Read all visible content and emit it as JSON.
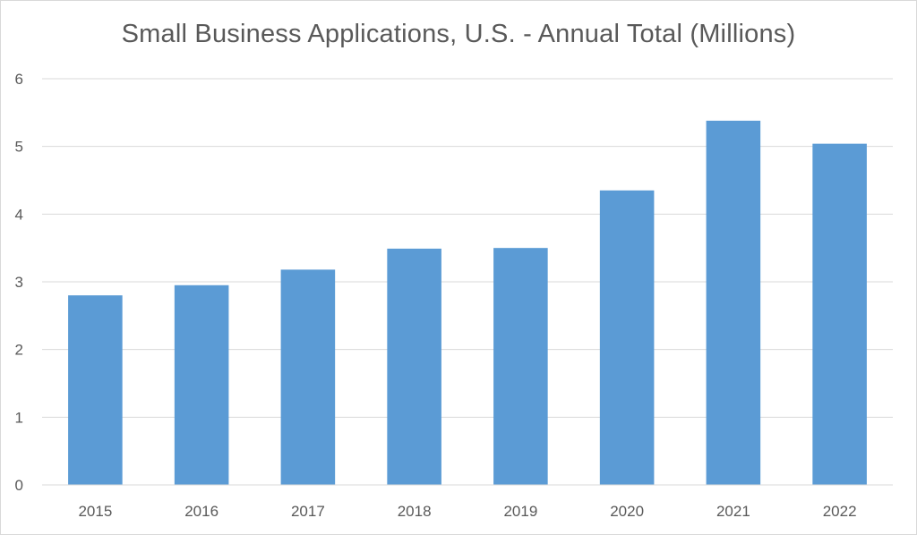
{
  "chart_data": {
    "type": "bar",
    "title": "Small Business Applications, U.S. - Annual Total (Millions)",
    "xlabel": "",
    "ylabel": "",
    "categories": [
      "2015",
      "2016",
      "2017",
      "2018",
      "2019",
      "2020",
      "2021",
      "2022"
    ],
    "values": [
      2.8,
      2.95,
      3.18,
      3.49,
      3.5,
      4.35,
      5.38,
      5.04
    ],
    "ylim": [
      0,
      6
    ],
    "yticks": [
      "0",
      "1",
      "2",
      "3",
      "4",
      "5",
      "6"
    ],
    "grid": true,
    "legend": "none",
    "bar_color": "#5b9bd5",
    "gridline_color": "#d9d9d9",
    "text_color": "#595959"
  }
}
